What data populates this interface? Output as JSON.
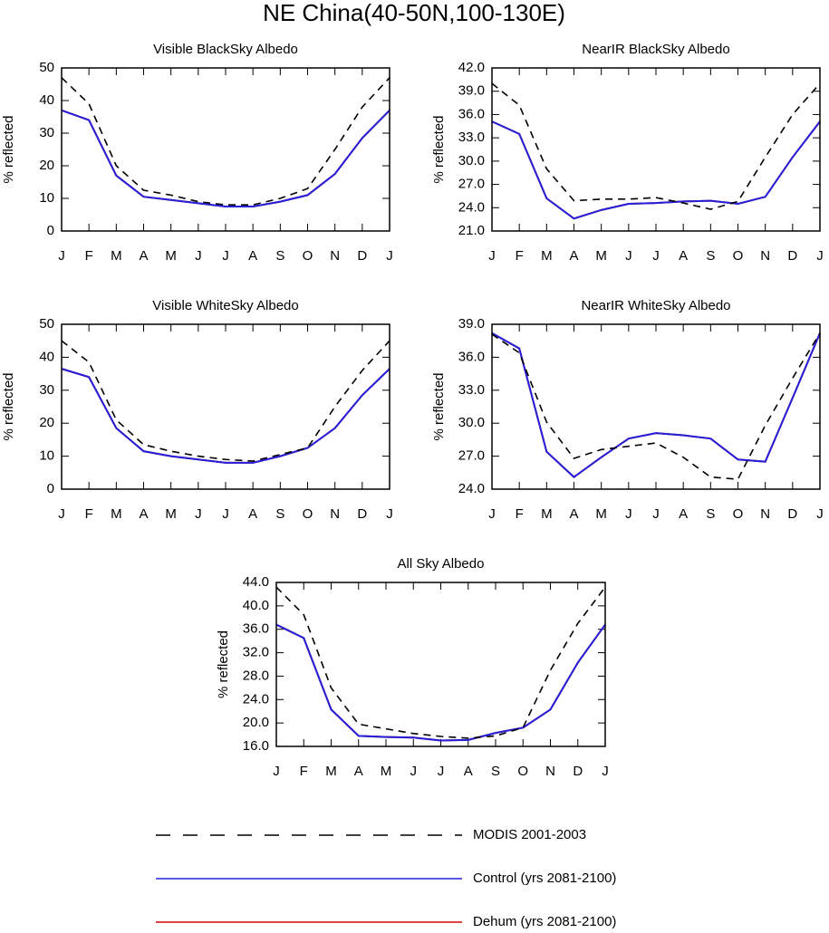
{
  "title": "NE China(40-50N,100-130E)",
  "chart_data": [
    {
      "type": "line",
      "title": "Visible BlackSky Albedo",
      "ylabel": "% reflected",
      "categories": [
        "J",
        "F",
        "M",
        "A",
        "M",
        "J",
        "J",
        "A",
        "S",
        "O",
        "N",
        "D",
        "J"
      ],
      "ylim": [
        0,
        50
      ],
      "yticks": [
        0,
        10,
        20,
        30,
        40,
        50
      ],
      "series": [
        {
          "name": "MODIS 2001-2003",
          "color": "#000000",
          "style": "dashed",
          "values": [
            47,
            39,
            20,
            12.5,
            11,
            9,
            8,
            8,
            10,
            13,
            25,
            38,
            47
          ]
        },
        {
          "name": "Control (yrs 2081-2100)",
          "color": "#2222dd",
          "style": "solid",
          "values": [
            37,
            34,
            17,
            10.5,
            9.5,
            8.5,
            7.5,
            7.5,
            9,
            11,
            17.5,
            28.5,
            37
          ]
        },
        {
          "name": "Dehum (yrs 2081-2100)",
          "color": "#dd0000",
          "style": "solid",
          "values": [
            37,
            34,
            17,
            10.5,
            9.5,
            8.5,
            7.5,
            7.5,
            9,
            11,
            17.5,
            28.5,
            37
          ]
        }
      ]
    },
    {
      "type": "line",
      "title": "NearIR BlackSky Albedo",
      "ylabel": "% reflected",
      "categories": [
        "J",
        "F",
        "M",
        "A",
        "M",
        "J",
        "J",
        "A",
        "S",
        "O",
        "N",
        "D",
        "J"
      ],
      "ylim": [
        21,
        42
      ],
      "yticks": [
        {
          "value": 21,
          "label": "21.0"
        },
        {
          "value": 24,
          "label": "24.0"
        },
        {
          "value": 27,
          "label": "27.0"
        },
        {
          "value": 30,
          "label": "30.0"
        },
        {
          "value": 33,
          "label": "33.0"
        },
        {
          "value": 36,
          "label": "36.0"
        },
        {
          "value": 39,
          "label": "39.0"
        },
        {
          "value": 42,
          "label": "42.0"
        }
      ],
      "series": [
        {
          "name": "MODIS 2001-2003",
          "color": "#000000",
          "style": "dashed",
          "values": [
            40,
            37.2,
            29,
            24.9,
            25.1,
            25.1,
            25.3,
            24.6,
            23.8,
            24.8,
            30.5,
            36,
            40
          ]
        },
        {
          "name": "Control (yrs 2081-2100)",
          "color": "#2222dd",
          "style": "solid",
          "values": [
            35.1,
            33.5,
            25.2,
            22.6,
            23.7,
            24.5,
            24.6,
            24.8,
            24.9,
            24.5,
            25.4,
            30.5,
            35.1
          ]
        },
        {
          "name": "Dehum (yrs 2081-2100)",
          "color": "#dd0000",
          "style": "solid",
          "values": [
            35.1,
            33.5,
            25.2,
            22.6,
            23.7,
            24.5,
            24.6,
            24.8,
            24.9,
            24.5,
            25.4,
            30.5,
            35.1
          ]
        }
      ]
    },
    {
      "type": "line",
      "title": "Visible WhiteSky Albedo",
      "ylabel": "% reflected",
      "categories": [
        "J",
        "F",
        "M",
        "A",
        "M",
        "J",
        "J",
        "A",
        "S",
        "O",
        "N",
        "D",
        "J"
      ],
      "ylim": [
        0,
        50
      ],
      "yticks": [
        0,
        10,
        20,
        30,
        40,
        50
      ],
      "series": [
        {
          "name": "MODIS 2001-2003",
          "color": "#000000",
          "style": "dashed",
          "values": [
            45,
            38.5,
            21,
            13.5,
            11.5,
            10,
            9,
            8.5,
            10.5,
            12.5,
            25,
            36,
            45
          ]
        },
        {
          "name": "Control (yrs 2081-2100)",
          "color": "#2222dd",
          "style": "solid",
          "values": [
            36.5,
            34,
            18.5,
            11.5,
            10,
            9,
            8,
            8,
            10,
            12.5,
            18.5,
            28.5,
            36.5
          ]
        },
        {
          "name": "Dehum (yrs 2081-2100)",
          "color": "#dd0000",
          "style": "solid",
          "values": [
            36.5,
            34,
            18.5,
            11.5,
            10,
            9,
            8,
            8,
            10,
            12.5,
            18.5,
            28.5,
            36.5
          ]
        }
      ]
    },
    {
      "type": "line",
      "title": "NearIR WhiteSky Albedo",
      "ylabel": "% reflected",
      "categories": [
        "J",
        "F",
        "M",
        "A",
        "M",
        "J",
        "J",
        "A",
        "S",
        "O",
        "N",
        "D",
        "J"
      ],
      "ylim": [
        24,
        39
      ],
      "yticks": [
        {
          "value": 24,
          "label": "24.0"
        },
        {
          "value": 27,
          "label": "27.0"
        },
        {
          "value": 30,
          "label": "30.0"
        },
        {
          "value": 33,
          "label": "33.0"
        },
        {
          "value": 36,
          "label": "36.0"
        },
        {
          "value": 39,
          "label": "39.0"
        }
      ],
      "series": [
        {
          "name": "MODIS 2001-2003",
          "color": "#000000",
          "style": "dashed",
          "values": [
            38.1,
            36.4,
            30.1,
            26.8,
            27.6,
            27.9,
            28.2,
            26.9,
            25.1,
            24.9,
            29.8,
            34.1,
            38.2
          ]
        },
        {
          "name": "Control (yrs 2081-2100)",
          "color": "#2222dd",
          "style": "solid",
          "values": [
            38.2,
            36.8,
            27.4,
            25.1,
            26.9,
            28.6,
            29.1,
            28.9,
            28.6,
            26.7,
            26.5,
            32.3,
            38.2
          ]
        },
        {
          "name": "Dehum (yrs 2081-2100)",
          "color": "#dd0000",
          "style": "solid",
          "values": [
            38.2,
            36.8,
            27.4,
            25.1,
            26.9,
            28.6,
            29.1,
            28.9,
            28.6,
            26.7,
            26.5,
            32.3,
            38.2
          ]
        }
      ]
    },
    {
      "type": "line",
      "title": "All Sky Albedo",
      "ylabel": "% reflected",
      "categories": [
        "J",
        "F",
        "M",
        "A",
        "M",
        "J",
        "J",
        "A",
        "S",
        "O",
        "N",
        "D",
        "J"
      ],
      "ylim": [
        16,
        44
      ],
      "yticks": [
        {
          "value": 16,
          "label": "16.0"
        },
        {
          "value": 20,
          "label": "20.0"
        },
        {
          "value": 24,
          "label": "24.0"
        },
        {
          "value": 28,
          "label": "28.0"
        },
        {
          "value": 32,
          "label": "32.0"
        },
        {
          "value": 36,
          "label": "36.0"
        },
        {
          "value": 40,
          "label": "40.0"
        },
        {
          "value": 44,
          "label": "44.0"
        }
      ],
      "series": [
        {
          "name": "MODIS 2001-2003",
          "color": "#000000",
          "style": "dashed",
          "values": [
            43.2,
            38.5,
            26,
            19.8,
            19,
            18.2,
            17.7,
            17.4,
            17.8,
            19.2,
            29,
            37,
            43.2
          ]
        },
        {
          "name": "Control (yrs 2081-2100)",
          "color": "#2222dd",
          "style": "solid",
          "values": [
            36.8,
            34.5,
            22.3,
            17.8,
            17.6,
            17.5,
            17,
            17.1,
            18.3,
            19.2,
            22.3,
            30.3,
            36.8
          ]
        },
        {
          "name": "Dehum (yrs 2081-2100)",
          "color": "#dd0000",
          "style": "solid",
          "values": [
            36.8,
            34.5,
            22.3,
            17.8,
            17.6,
            17.5,
            17,
            17.1,
            18.3,
            19.2,
            22.3,
            30.3,
            36.8
          ]
        }
      ]
    }
  ]
}
